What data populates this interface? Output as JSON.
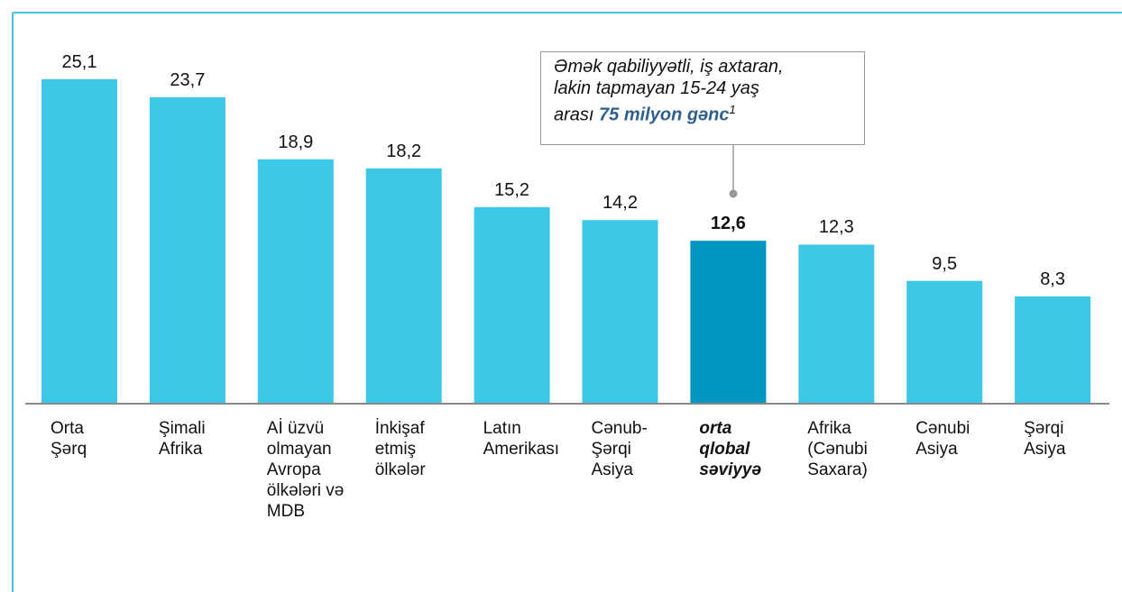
{
  "chart_data": {
    "type": "bar",
    "categories": [
      "Orta\nŞərq",
      "Şimali\nAfrika",
      "Aİ üzvü\nolmayan\nAvropa\nölkələri və\nMDB",
      "İnkişaf\netmiş\nölkələr",
      "Latın\nAmerikası",
      "Cənub-\nŞərqi\nAsiya",
      "orta\nqlobal\nsəviyyə",
      "Afrika\n(Cənubi\nSaxara)",
      "Cənubi\nAsiya",
      "Şərqi\nAsiya"
    ],
    "values": [
      25.1,
      23.7,
      18.9,
      18.2,
      15.2,
      14.2,
      12.6,
      12.3,
      9.5,
      8.3
    ],
    "value_labels": [
      "25,1",
      "23,7",
      "18,9",
      "18,2",
      "15,2",
      "14,2",
      "12,6",
      "12,3",
      "9,5",
      "8,3"
    ],
    "color": "#3ec8e8",
    "highlight_color": "#0096c0",
    "highlight_index": 6,
    "annotation": {
      "text": "Əmək qabiliyyətli, iş axtaran,\nlakin tapmayan 15-24 yaş\narası ",
      "emphasis": "75 milyon gənc",
      "footnote": "1"
    }
  }
}
